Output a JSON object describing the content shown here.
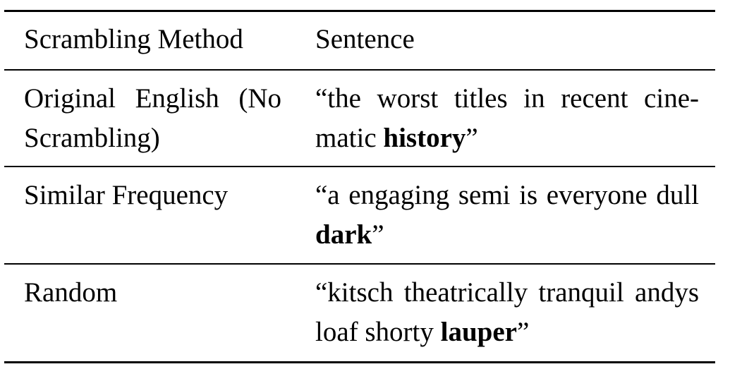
{
  "table": {
    "headers": {
      "method": "Scrambling Method",
      "sentence": "Sentence"
    },
    "rows": [
      {
        "method": "Original English (No Scrambling)",
        "sentence_prefix": "“the worst titles in recent cine-matic ",
        "sentence_bold": "history",
        "sentence_suffix": "”"
      },
      {
        "method": "Similar Frequency",
        "sentence_prefix": "“a engaging semi is everyone dull ",
        "sentence_bold": "dark",
        "sentence_suffix": "”"
      },
      {
        "method": "Random",
        "sentence_prefix": "“kitsch theatrically tranquil andys loaf shorty ",
        "sentence_bold": "lauper",
        "sentence_suffix": "”"
      }
    ]
  }
}
